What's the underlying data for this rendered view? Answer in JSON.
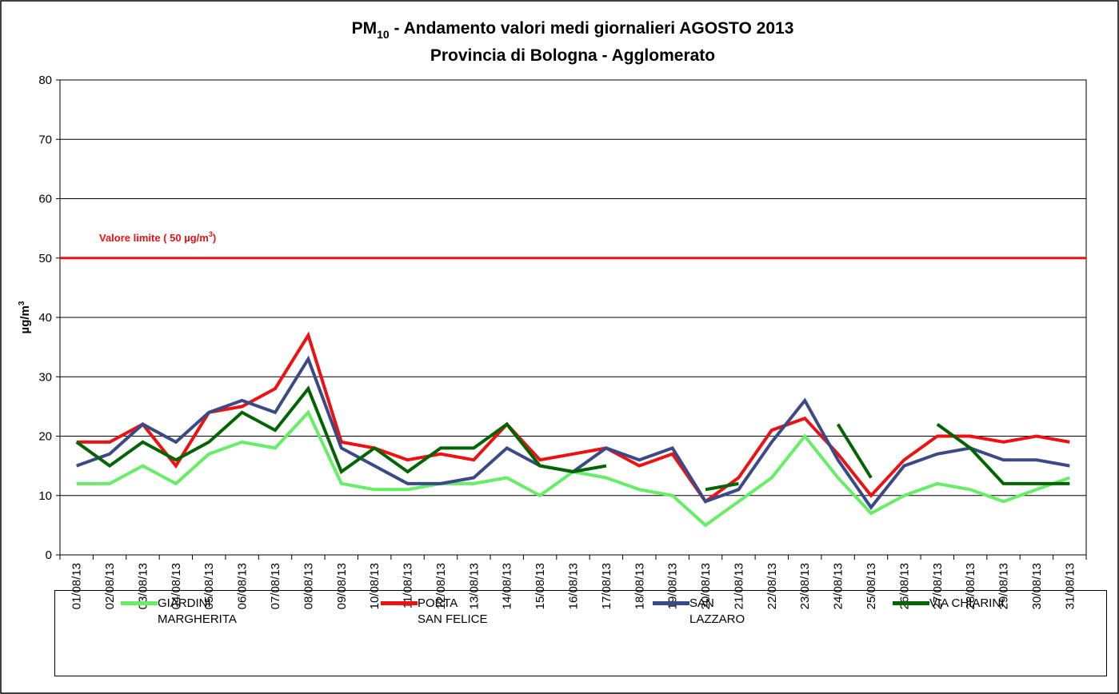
{
  "chart_data": {
    "type": "line",
    "title": {
      "base": "PM",
      "sub": "10",
      "rest": " - Andamento valori medi giornalieri AGOSTO 2013"
    },
    "subtitle": "Provincia di Bologna - Agglomerato",
    "ylabel": {
      "base": "µg/m",
      "sup": "3"
    },
    "categories": [
      "01/08/13",
      "02/08/13",
      "03/08/13",
      "04/08/13",
      "05/08/13",
      "06/08/13",
      "07/08/13",
      "08/08/13",
      "09/08/13",
      "10/08/13",
      "11/08/13",
      "12/08/13",
      "13/08/13",
      "14/08/13",
      "15/08/13",
      "16/08/13",
      "17/08/13",
      "18/08/13",
      "19/08/13",
      "20/08/13",
      "21/08/13",
      "22/08/13",
      "23/08/13",
      "24/08/13",
      "25/08/13",
      "26/08/13",
      "27/08/13",
      "28/08/13",
      "29/08/13",
      "30/08/13",
      "31/08/13"
    ],
    "series": [
      {
        "name": "GIARDINI\nMARGHERITA",
        "color": "#66ee66",
        "values": [
          12,
          12,
          15,
          12,
          17,
          19,
          18,
          24,
          12,
          11,
          11,
          12,
          12,
          13,
          10,
          14,
          13,
          11,
          10,
          5,
          9,
          13,
          20,
          13,
          7,
          10,
          12,
          11,
          9,
          11,
          13
        ]
      },
      {
        "name": "PORTA\nSAN FELICE",
        "color": "#ee1111",
        "values": [
          19,
          19,
          22,
          15,
          24,
          25,
          28,
          37,
          19,
          18,
          16,
          17,
          16,
          22,
          16,
          17,
          18,
          15,
          17,
          9,
          13,
          21,
          23,
          17,
          10,
          16,
          20,
          20,
          19,
          20,
          19
        ]
      },
      {
        "name": "SAN\nLAZZARO",
        "color": "#3b4a86",
        "values": [
          15,
          17,
          22,
          19,
          24,
          26,
          24,
          33,
          18,
          15,
          12,
          12,
          13,
          18,
          15,
          14,
          18,
          16,
          18,
          9,
          11,
          19,
          26,
          16,
          8,
          15,
          17,
          18,
          16,
          16,
          15
        ]
      },
      {
        "name": "VIA CHIARINI",
        "color": "#006400",
        "values": [
          19,
          15,
          19,
          16,
          19,
          24,
          21,
          28,
          14,
          18,
          14,
          18,
          18,
          22,
          15,
          14,
          15,
          null,
          null,
          11,
          12,
          null,
          null,
          22,
          13,
          null,
          22,
          18,
          12,
          12,
          12
        ]
      }
    ],
    "limit": {
      "value": 50,
      "color": "#ee1111",
      "label": "Valore limite  ( 50 µg/m",
      "label_sup": "3",
      "label_end": ")"
    },
    "ylim": [
      0,
      80
    ],
    "yticks": [
      0,
      10,
      20,
      30,
      40,
      50,
      60,
      70,
      80
    ],
    "grid": true
  }
}
